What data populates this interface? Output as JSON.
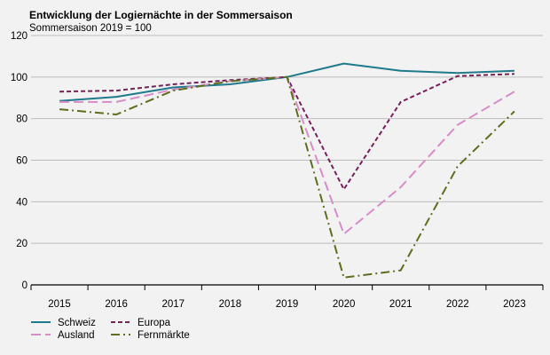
{
  "chart_data": {
    "type": "line",
    "title": "Entwicklung der Logiernächte in der Sommersaison",
    "subtitle": "Sommersaison 2019 = 100",
    "xlabel": "",
    "ylabel": "",
    "categories": [
      "2015",
      "2016",
      "2017",
      "2018",
      "2019",
      "2020",
      "2021",
      "2022",
      "2023"
    ],
    "ylim": [
      0,
      120
    ],
    "yticks": [
      0,
      20,
      40,
      60,
      80,
      100,
      120
    ],
    "grid": true,
    "legend_position": "bottom-left",
    "series": [
      {
        "name": "Schweiz",
        "color": "#1f7a8c",
        "dash": "solid",
        "values": [
          88.5,
          90.5,
          95,
          96.5,
          100,
          106.5,
          103,
          102,
          103
        ]
      },
      {
        "name": "Europa",
        "color": "#7b1f5c",
        "dash": "dash",
        "values": [
          93,
          93.5,
          96.5,
          98.5,
          100,
          46,
          88,
          100.5,
          101.5
        ]
      },
      {
        "name": "Ausland",
        "color": "#d98cc8",
        "dash": "longdash",
        "values": [
          88,
          88,
          94,
          98,
          100,
          24.5,
          47,
          77,
          93
        ]
      },
      {
        "name": "Fernmärkte",
        "color": "#5e6e1e",
        "dash": "dashdot",
        "values": [
          84.5,
          82,
          93.5,
          98,
          100,
          3.5,
          7,
          57,
          83.5
        ]
      }
    ]
  }
}
